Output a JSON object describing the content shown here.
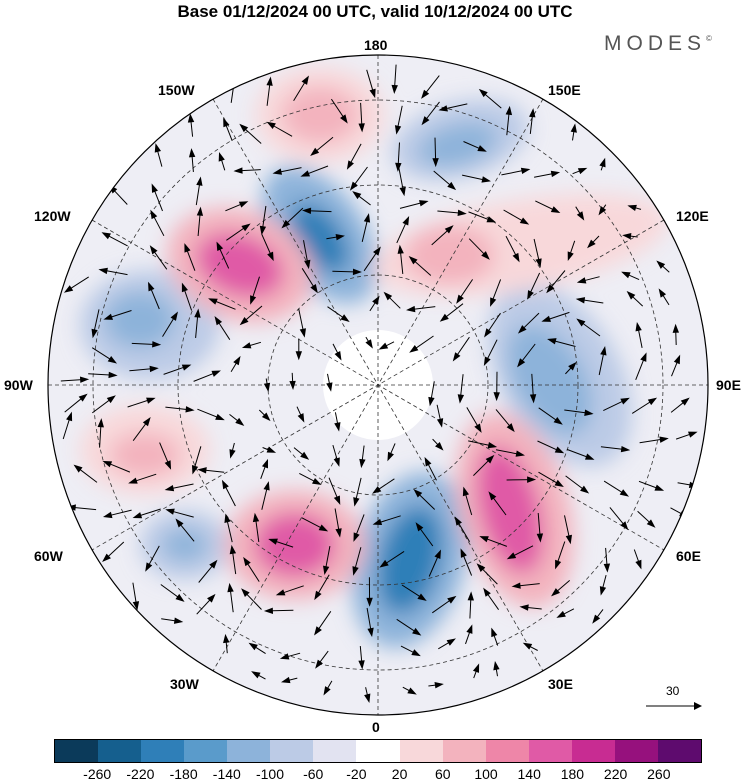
{
  "title": "Base 01/12/2024 00 UTC, valid 10/12/2024 00 UTC",
  "logo": "MODES",
  "logo_mark": "©",
  "longitude_labels": {
    "top": "180",
    "top_left": "150W",
    "top_right": "150E",
    "upper_left": "120W",
    "upper_right": "120E",
    "left": "90W",
    "right": "90E",
    "lower_left": "60W",
    "lower_right": "60E",
    "bottom_left": "30W",
    "bottom_right": "30E",
    "bottom": "0"
  },
  "reference_vector": {
    "value": "30",
    "icon": "arrow-right-icon"
  },
  "colorbar": {
    "colors": [
      "#0b3a5a",
      "#155f8e",
      "#2f7fb8",
      "#5a9bcb",
      "#8db3da",
      "#bccbe6",
      "#e2e3f1",
      "#ffffff",
      "#f8d8da",
      "#f3b3be",
      "#ee86a8",
      "#e05aa6",
      "#c82c92",
      "#96117d",
      "#5e0b6e"
    ],
    "ticks": [
      "-260",
      "-220",
      "-180",
      "-140",
      "-100",
      "-60",
      "-20",
      "20",
      "60",
      "100",
      "140",
      "180",
      "220",
      "260"
    ]
  },
  "field_colors": {
    "strong_positive": "#e05aa6",
    "positive": "#f3b3be",
    "weak_positive": "#f8d8da",
    "weak_negative": "#e2e3f1",
    "negative": "#8db3da",
    "strong_negative": "#2f7fb8"
  }
}
